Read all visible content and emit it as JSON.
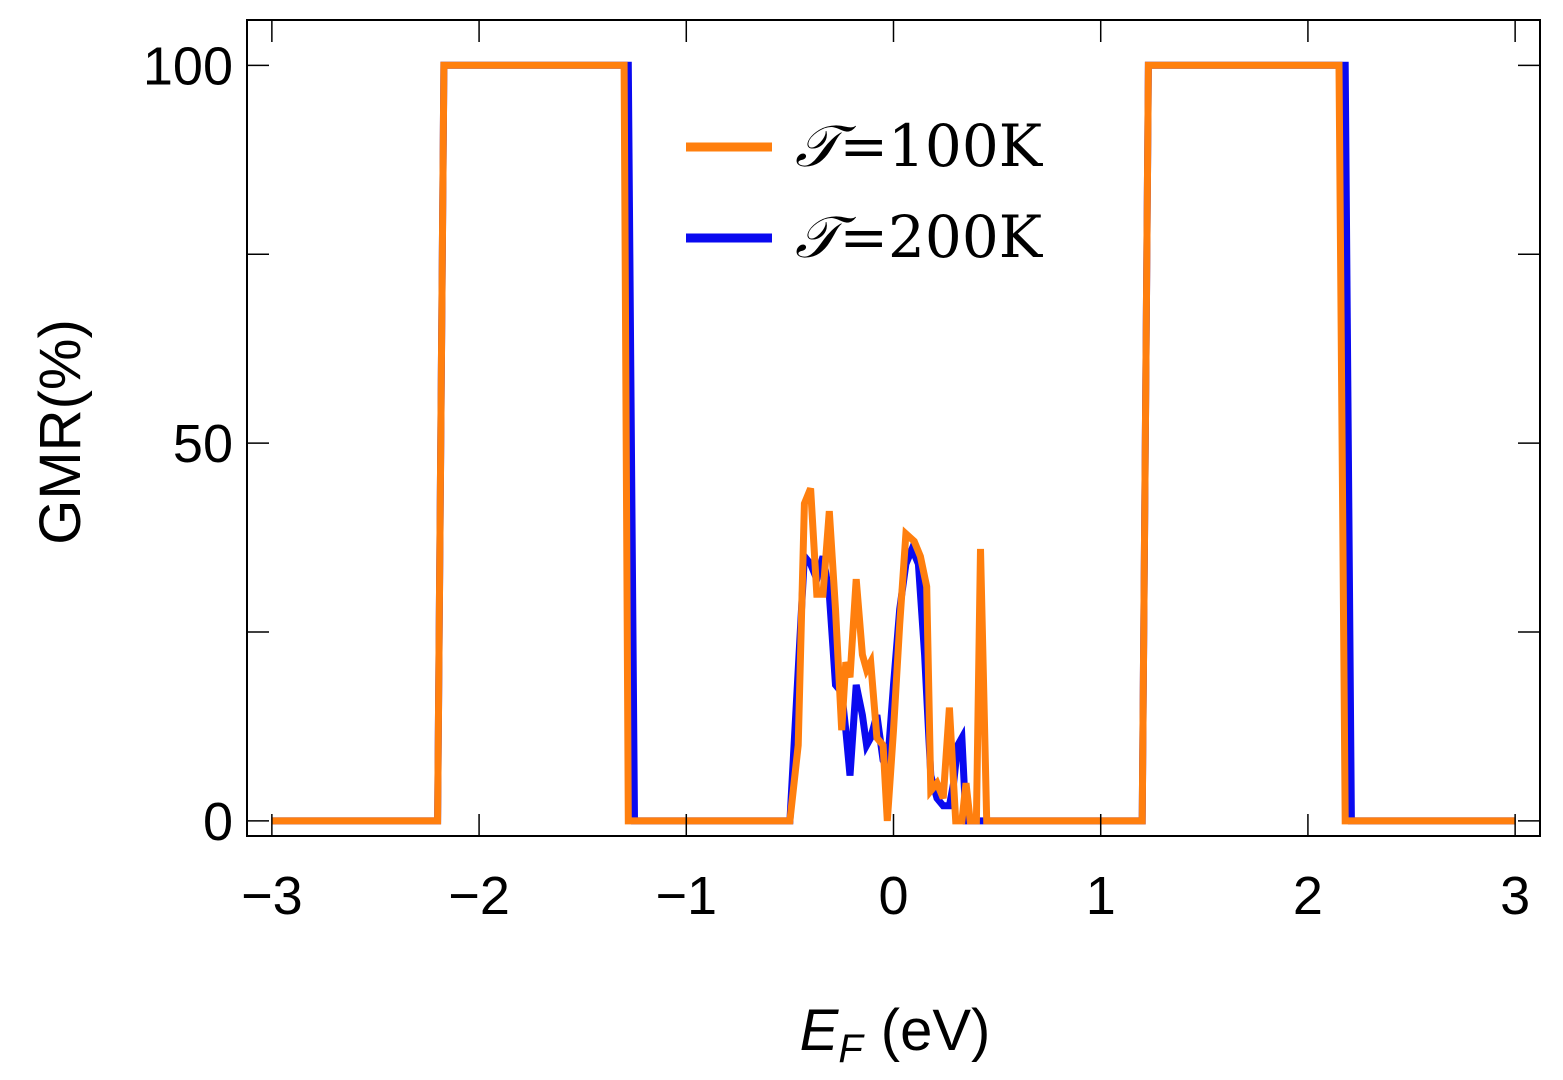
{
  "chart_data": {
    "type": "line",
    "title": "",
    "xlabel": {
      "symbol": "E",
      "subscript": "F",
      "unit": "(eV)"
    },
    "ylabel": "GMR(%)",
    "xlim": [
      -3.12,
      3.12
    ],
    "ylim": [
      -2,
      106
    ],
    "x_ticks": [
      -3,
      -2,
      -1,
      0,
      1,
      2,
      3
    ],
    "x_tick_labels": [
      "−3",
      "−2",
      "−1",
      "0",
      "1",
      "2",
      "3"
    ],
    "y_ticks": [
      0,
      25,
      50,
      75,
      100
    ],
    "y_tick_labels": [
      "0",
      "",
      "50",
      "",
      "100"
    ],
    "grid": false,
    "legend_position": "top-center",
    "series": [
      {
        "name": "T=100K",
        "legend_symbol": "𝒯",
        "legend_value": "=100K",
        "color": "#ff7f0e",
        "points": [
          [
            -3.0,
            0
          ],
          [
            -2.2,
            0
          ],
          [
            -2.17,
            100
          ],
          [
            -1.3,
            100
          ],
          [
            -1.28,
            0
          ],
          [
            -0.5,
            0
          ],
          [
            -0.46,
            10
          ],
          [
            -0.43,
            42
          ],
          [
            -0.4,
            44
          ],
          [
            -0.37,
            30
          ],
          [
            -0.34,
            30
          ],
          [
            -0.31,
            41
          ],
          [
            -0.28,
            28
          ],
          [
            -0.25,
            12
          ],
          [
            -0.23,
            21
          ],
          [
            -0.21,
            19
          ],
          [
            -0.18,
            32
          ],
          [
            -0.15,
            22
          ],
          [
            -0.13,
            20
          ],
          [
            -0.11,
            21
          ],
          [
            -0.08,
            11
          ],
          [
            -0.05,
            10
          ],
          [
            -0.03,
            0
          ],
          [
            0.0,
            12
          ],
          [
            0.03,
            26
          ],
          [
            0.06,
            38
          ],
          [
            0.1,
            37
          ],
          [
            0.13,
            35
          ],
          [
            0.16,
            31
          ],
          [
            0.18,
            4
          ],
          [
            0.21,
            5
          ],
          [
            0.24,
            3
          ],
          [
            0.27,
            15
          ],
          [
            0.3,
            0
          ],
          [
            0.33,
            0
          ],
          [
            0.35,
            5
          ],
          [
            0.37,
            0
          ],
          [
            0.4,
            0
          ],
          [
            0.42,
            36
          ],
          [
            0.45,
            0
          ],
          [
            1.2,
            0
          ],
          [
            1.23,
            100
          ],
          [
            2.15,
            100
          ],
          [
            2.18,
            0
          ],
          [
            3.0,
            0
          ]
        ]
      },
      {
        "name": "T=200K",
        "legend_symbol": "𝒯",
        "legend_value": "=200K",
        "color": "#0a0af0",
        "points": [
          [
            -3.0,
            0
          ],
          [
            -2.2,
            0
          ],
          [
            -2.17,
            100
          ],
          [
            -1.28,
            100
          ],
          [
            -1.25,
            0
          ],
          [
            -0.5,
            0
          ],
          [
            -0.46,
            20
          ],
          [
            -0.43,
            35
          ],
          [
            -0.4,
            34
          ],
          [
            -0.37,
            32
          ],
          [
            -0.34,
            35
          ],
          [
            -0.31,
            30
          ],
          [
            -0.28,
            18
          ],
          [
            -0.25,
            17
          ],
          [
            -0.23,
            12
          ],
          [
            -0.21,
            6
          ],
          [
            -0.18,
            18
          ],
          [
            -0.15,
            14
          ],
          [
            -0.13,
            10
          ],
          [
            -0.11,
            11
          ],
          [
            -0.08,
            14
          ],
          [
            -0.05,
            8
          ],
          [
            -0.03,
            7
          ],
          [
            0.0,
            18
          ],
          [
            0.03,
            28
          ],
          [
            0.06,
            34
          ],
          [
            0.09,
            36
          ],
          [
            0.12,
            34
          ],
          [
            0.15,
            22
          ],
          [
            0.18,
            6
          ],
          [
            0.21,
            3
          ],
          [
            0.24,
            2
          ],
          [
            0.27,
            2
          ],
          [
            0.29,
            5
          ],
          [
            0.31,
            10
          ],
          [
            0.33,
            11
          ],
          [
            0.35,
            0
          ],
          [
            0.4,
            0
          ],
          [
            0.44,
            0
          ],
          [
            1.2,
            0
          ],
          [
            1.23,
            100
          ],
          [
            2.18,
            100
          ],
          [
            2.21,
            0
          ],
          [
            3.0,
            0
          ]
        ]
      }
    ]
  }
}
